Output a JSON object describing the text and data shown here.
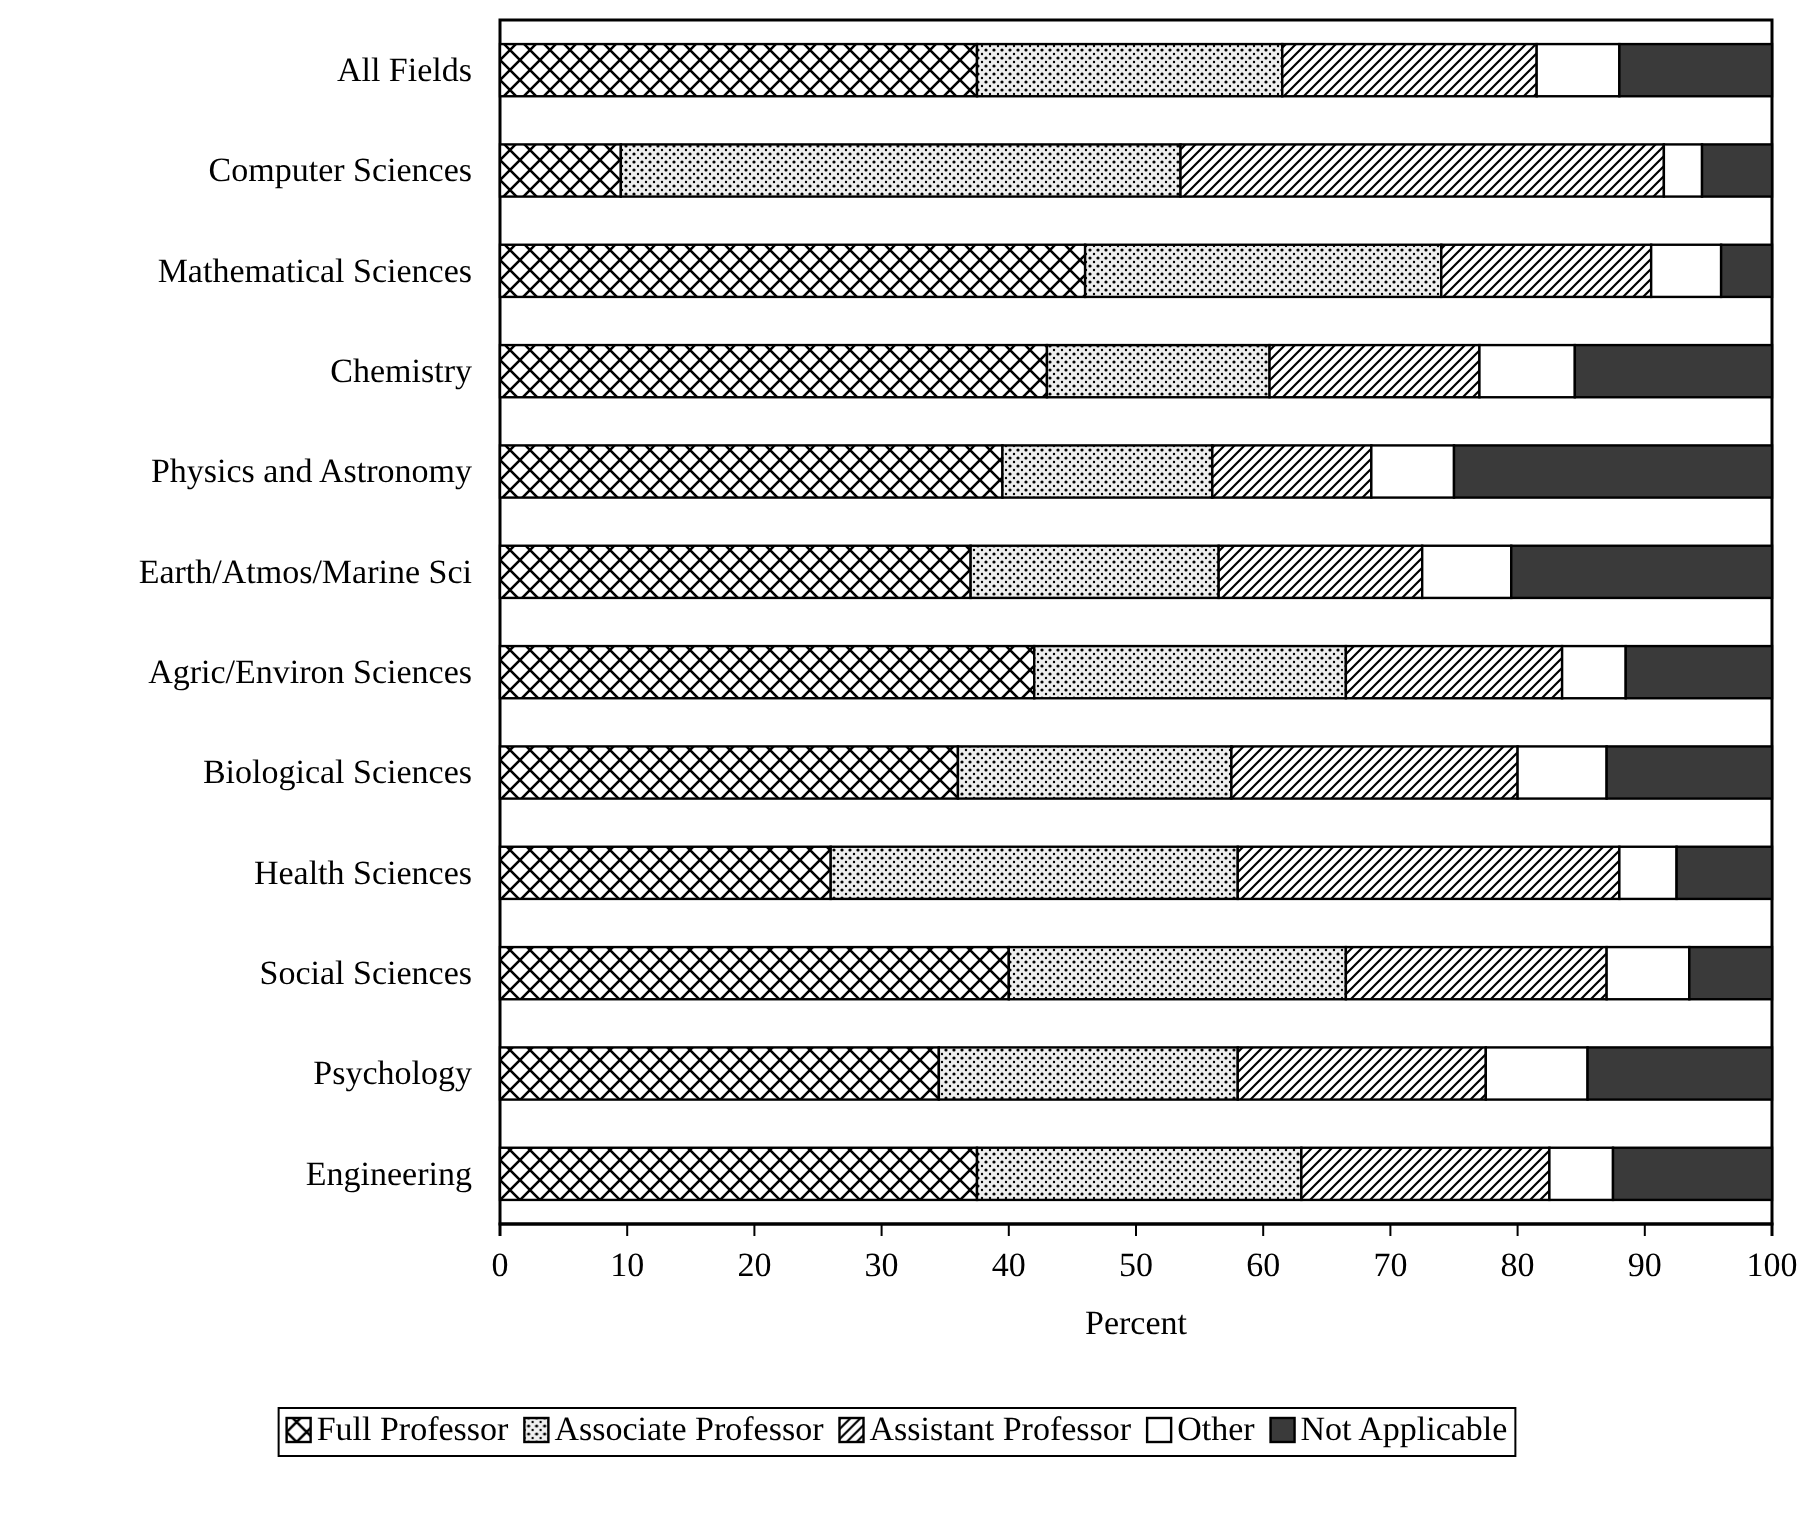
{
  "chart_data": {
    "type": "bar",
    "orientation": "horizontal",
    "stacked": true,
    "xlabel": "Percent",
    "xlim": [
      0,
      100
    ],
    "xticks": [
      0,
      10,
      20,
      30,
      40,
      50,
      60,
      70,
      80,
      90,
      100
    ],
    "grid": false,
    "legend": "bottom",
    "categories": [
      "All Fields",
      "Computer Sciences",
      "Mathematical Sciences",
      "Chemistry",
      "Physics and Astronomy",
      "Earth/Atmos/Marine Sci",
      "Agric/Environ Sciences",
      "Biological Sciences",
      "Health Sciences",
      "Social Sciences",
      "Psychology",
      "Engineering"
    ],
    "series": [
      {
        "name": "Full Professor",
        "color": "#000000",
        "values": [
          37.5,
          9.5,
          46,
          43,
          39.5,
          37,
          42,
          36,
          26,
          40,
          34.5,
          37.5
        ]
      },
      {
        "name": "Associate Professor",
        "color": "#000000",
        "values": [
          24,
          44,
          28,
          17.5,
          16.5,
          19.5,
          24.5,
          21.5,
          32,
          26.5,
          23.5,
          25.5
        ]
      },
      {
        "name": "Assistant Professor",
        "color": "#000000",
        "values": [
          20,
          38,
          16.5,
          16.5,
          12.5,
          16,
          17,
          22.5,
          30,
          20.5,
          19.5,
          19.5
        ]
      },
      {
        "name": "Other",
        "color": "#ffffff",
        "values": [
          6.5,
          3,
          5.5,
          7.5,
          6.5,
          7,
          5,
          7,
          4.5,
          6.5,
          8,
          5
        ]
      },
      {
        "name": "Not Applicable",
        "color": "#3a3a3a",
        "values": [
          12,
          5.5,
          4,
          15.5,
          25,
          20.5,
          11.5,
          13,
          7.5,
          6.5,
          14.5,
          12.5
        ]
      }
    ]
  }
}
